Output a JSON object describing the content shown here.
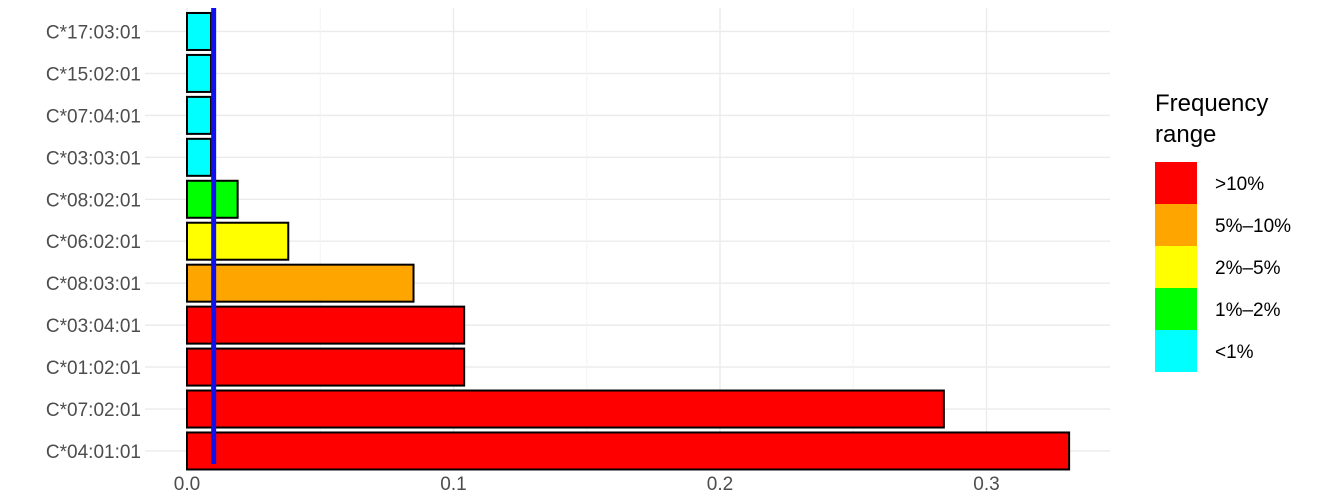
{
  "chart_data": {
    "type": "bar",
    "orientation": "horizontal",
    "categories": [
      "C*04:01:01",
      "C*07:02:01",
      "C*01:02:01",
      "C*03:04:01",
      "C*08:03:01",
      "C*06:02:01",
      "C*08:02:01",
      "C*03:03:01",
      "C*07:04:01",
      "C*15:02:01",
      "C*17:03:01"
    ],
    "values": [
      0.331,
      0.284,
      0.104,
      0.104,
      0.085,
      0.038,
      0.019,
      0.009,
      0.009,
      0.009,
      0.009
    ],
    "ranges": [
      ">10%",
      ">10%",
      ">10%",
      ">10%",
      "5%–10%",
      "2%–5%",
      "1%–2%",
      "<1%",
      "<1%",
      "<1%",
      "<1%"
    ],
    "xlim": [
      0,
      0.35
    ],
    "x_ticks": [
      0.0,
      0.1,
      0.2,
      0.3
    ],
    "x_tick_labels": [
      "0.0",
      "0.1",
      "0.2",
      "0.3"
    ],
    "reference_line": {
      "value": 0.01,
      "color": "#1010ee"
    },
    "grid": true,
    "legend": {
      "title_lines": [
        "Frequency",
        "range"
      ],
      "placement": "right",
      "items": [
        {
          "label": ">10%",
          "color": "#ff0000"
        },
        {
          "label": "5%–10%",
          "color": "#ffa500"
        },
        {
          "label": "2%–5%",
          "color": "#ffff00"
        },
        {
          "label": "1%–2%",
          "color": "#00ff00"
        },
        {
          "label": "<1%",
          "color": "#00ffff"
        }
      ]
    }
  }
}
